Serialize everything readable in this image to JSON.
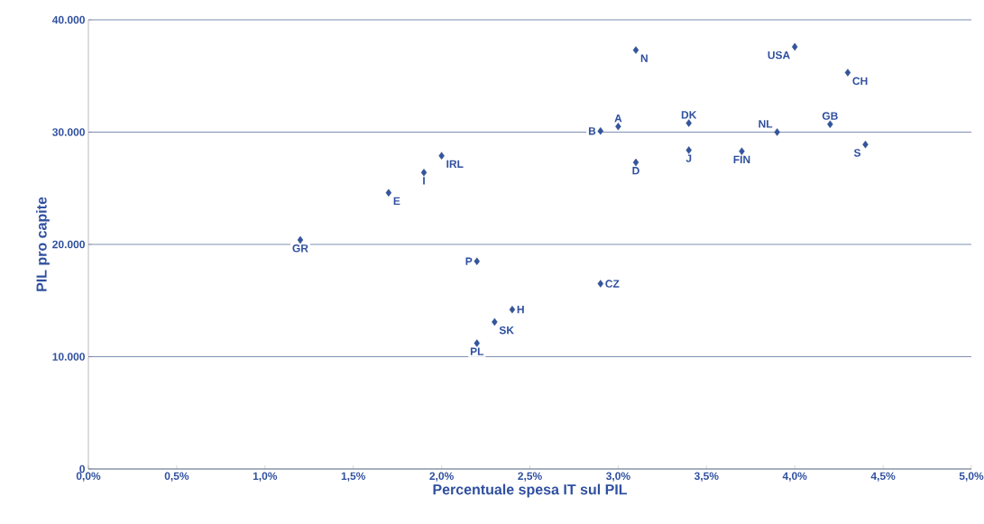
{
  "chart_data": {
    "type": "scatter",
    "xlabel": "Percentuale spesa IT sul PIL",
    "ylabel": "PIL pro capite",
    "x": [
      1.2,
      1.7,
      1.9,
      2.0,
      2.2,
      2.2,
      2.3,
      2.4,
      2.9,
      2.9,
      3.0,
      3.1,
      3.1,
      3.4,
      3.4,
      3.7,
      3.9,
      4.0,
      4.2,
      4.3,
      4.4
    ],
    "values": [
      20400,
      24600,
      26400,
      27900,
      18500,
      11200,
      13100,
      14200,
      16500,
      30100,
      30500,
      37300,
      27300,
      30800,
      28400,
      28300,
      30000,
      37600,
      30700,
      35300,
      28900
    ],
    "color": "#3355a0",
    "marker": "diamond",
    "grid": "y",
    "xlim": [
      0,
      5
    ],
    "ylim": [
      0,
      40000
    ],
    "xticks": [
      {
        "value": 0,
        "label": "0,0%"
      },
      {
        "value": 0.5,
        "label": "0,5%"
      },
      {
        "value": 1,
        "label": "1,0%"
      },
      {
        "value": 1.5,
        "label": "1,5%"
      },
      {
        "value": 2,
        "label": "2,0%"
      },
      {
        "value": 2.5,
        "label": "2,5%"
      },
      {
        "value": 3,
        "label": "3,0%"
      },
      {
        "value": 3.5,
        "label": "3,5%"
      },
      {
        "value": 4,
        "label": "4,0%"
      },
      {
        "value": 4.5,
        "label": "4,5%"
      },
      {
        "value": 5,
        "label": "5,0%"
      }
    ],
    "yticks": [
      0,
      {
        "value": 10000,
        "label": "10.000"
      },
      {
        "value": 20000,
        "label": "20.000"
      },
      {
        "value": 30000,
        "label": "30.000"
      },
      {
        "value": 40000,
        "label": "40.000"
      }
    ],
    "annotations": [
      {
        "text": "GR",
        "x": 1.2,
        "y": 20400
      },
      {
        "text": "E",
        "x": 1.7,
        "y": 24600
      },
      {
        "text": "I",
        "x": 1.9,
        "y": 26400
      },
      {
        "text": "IRL",
        "x": 2.0,
        "y": 27900
      },
      {
        "text": "P",
        "x": 2.2,
        "y": 18500
      },
      {
        "text": "PL",
        "x": 2.2,
        "y": 11200
      },
      {
        "text": "SK",
        "x": 2.3,
        "y": 13100
      },
      {
        "text": "H",
        "x": 2.4,
        "y": 14200
      },
      {
        "text": "CZ",
        "x": 2.9,
        "y": 16500
      },
      {
        "text": "B",
        "x": 2.9,
        "y": 30100
      },
      {
        "text": "A",
        "x": 3.0,
        "y": 30500
      },
      {
        "text": "N",
        "x": 3.1,
        "y": 37300
      },
      {
        "text": "D",
        "x": 3.1,
        "y": 27300
      },
      {
        "text": "DK",
        "x": 3.4,
        "y": 30800
      },
      {
        "text": "J",
        "x": 3.4,
        "y": 28400
      },
      {
        "text": "FIN",
        "x": 3.7,
        "y": 28300
      },
      {
        "text": "NL",
        "x": 3.9,
        "y": 30000
      },
      {
        "text": "USA",
        "x": 4.0,
        "y": 37600
      },
      {
        "text": "GB",
        "x": 4.2,
        "y": 30700
      },
      {
        "text": "CH",
        "x": 4.3,
        "y": 35300
      },
      {
        "text": "S",
        "x": 4.4,
        "y": 28900
      }
    ]
  }
}
